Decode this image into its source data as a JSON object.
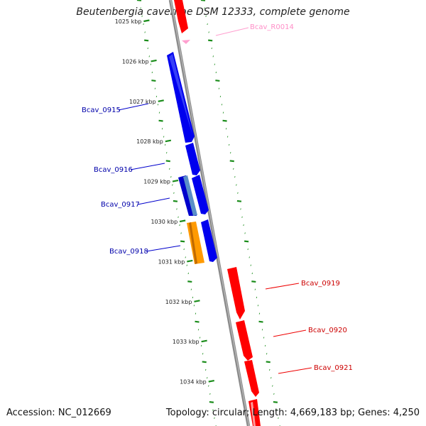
{
  "title": "Beutenbergia cavernae DSM 12333, complete genome",
  "footer": {
    "accession": "Accession: NC_012669",
    "topology": "Topology: circular; Length: 4,669,183 bp; Genes: 4,250"
  },
  "colors": {
    "forward_cds": "#0000ee",
    "reverse_cds": "#ff0000",
    "rna": "#ff9fcf",
    "pseudo": "#5a8fc8",
    "highlight": "#ff9a00",
    "backbone": "#888888",
    "ticks": "#1a8c1a"
  },
  "kbp_labels": [
    "1025 kbp",
    "1026 kbp",
    "1027 kbp",
    "1028 kbp",
    "1029 kbp",
    "1030 kbp",
    "1031 kbp",
    "1032 kbp",
    "1033 kbp",
    "1034 kbp"
  ],
  "gene_labels": {
    "rna": "Bcav_R0014",
    "g0915": "Bcav_0915",
    "g0916": "Bcav_0916",
    "g0917": "Bcav_0917",
    "g0918": "Bcav_0918",
    "g0919": "Bcav_0919",
    "g0920": "Bcav_0920",
    "g0921": "Bcav_0921"
  }
}
